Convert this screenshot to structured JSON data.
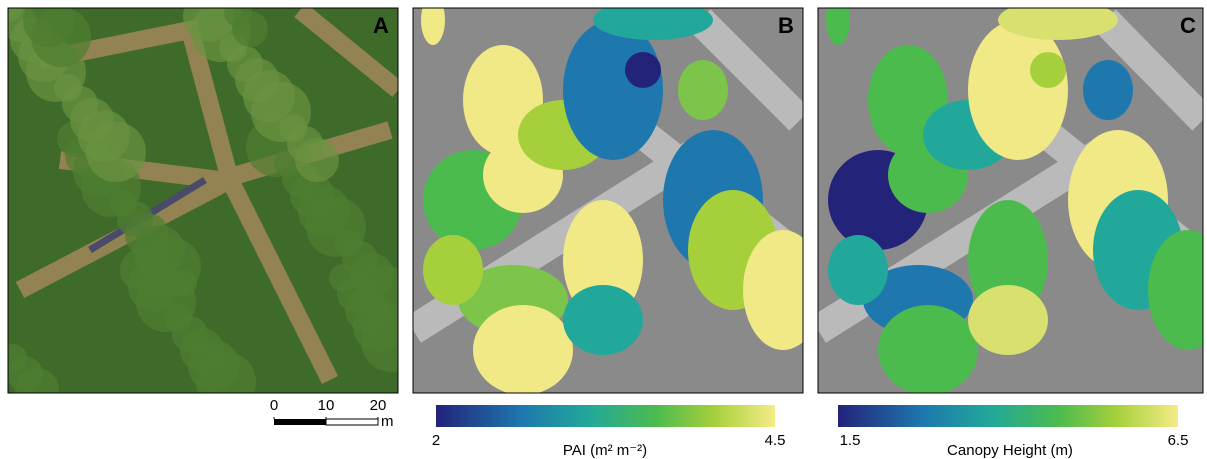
{
  "panels": [
    {
      "label": "A"
    },
    {
      "label": "B"
    },
    {
      "label": "C"
    }
  ],
  "scale_bar": {
    "ticks": [
      0,
      10,
      20
    ],
    "unit": "m"
  },
  "colorbars": [
    {
      "min": 2,
      "max": 4.5,
      "label": "PAI (m² m⁻²)"
    },
    {
      "min": 1.5,
      "max": 6.5,
      "label": "Canopy Height (m)"
    }
  ]
}
